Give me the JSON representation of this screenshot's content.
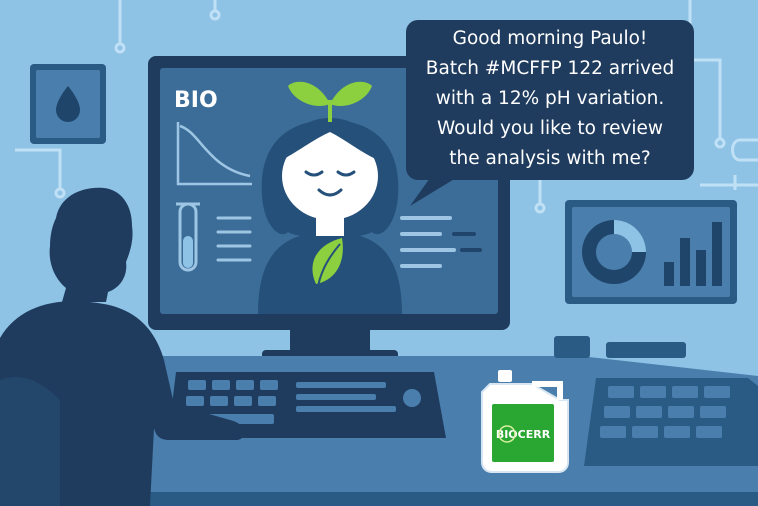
{
  "screen": {
    "label": "BIO"
  },
  "assistant": {
    "message_lines": [
      "Good morning Paulo!",
      "Batch #MCFFP 122 arrived",
      "with a 12% pH variation.",
      "Would you like to review",
      "the analysis with me?"
    ]
  },
  "product": {
    "brand_logo": "BIOCERR"
  },
  "icons": {
    "water-drop-icon": "drop",
    "sprout-icon": "sprout",
    "leaf-icon": "leaf",
    "test-tube-icon": "tube",
    "curve-chart-icon": "decay-curve",
    "pie-chart-icon": "pie",
    "bar-chart-icon": "bars"
  },
  "colors": {
    "background": "#8ec3e6",
    "panel_dark": "#1f3c5e",
    "panel_mid": "#2b5c87",
    "screen_inner": "#3b6d98",
    "accent_green": "#8ccf3f",
    "logo_green": "#2aa632",
    "text_white": "#ffffff"
  }
}
